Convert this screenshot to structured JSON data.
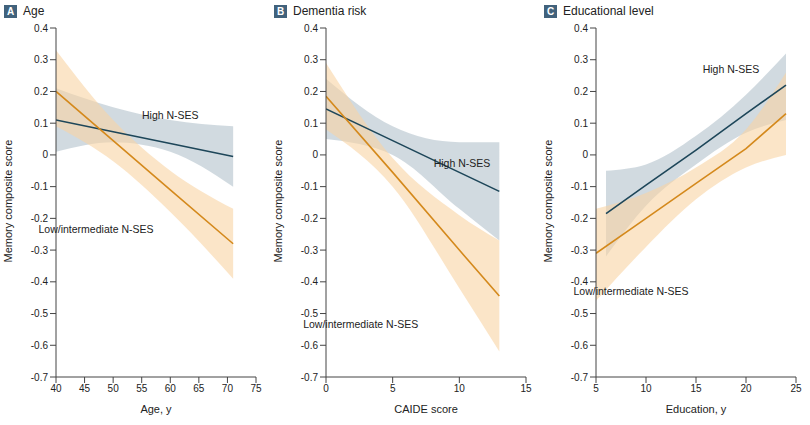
{
  "chart_data": [
    {
      "type": "line",
      "label": "A",
      "title": "Age",
      "x_label": "Age, y",
      "y_label": "Memory composite score",
      "xlim": [
        40,
        75
      ],
      "xticks": [
        40,
        45,
        50,
        55,
        60,
        65,
        70,
        75
      ],
      "ylim": [
        -0.7,
        0.4
      ],
      "yticks": [
        -0.7,
        -0.6,
        -0.5,
        -0.4,
        -0.3,
        -0.2,
        -0.1,
        0,
        0.1,
        0.2,
        0.3,
        0.4
      ],
      "grid": false,
      "series": [
        {
          "name": "High N-SES",
          "color": "#1d4659",
          "band_color": "#b3c1cb",
          "x": [
            40,
            50,
            60,
            71
          ],
          "values": [
            0.11,
            0.073,
            0.036,
            -0.005
          ],
          "lower": [
            0.01,
            0.04,
            0.01,
            -0.1
          ],
          "upper": [
            0.21,
            0.15,
            0.11,
            0.09
          ]
        },
        {
          "name": "Low/intermediate N-SES",
          "color": "#d4891c",
          "band_color": "#f9d3a3",
          "x": [
            40,
            50,
            60,
            71
          ],
          "values": [
            0.2,
            0.045,
            -0.11,
            -0.28
          ],
          "lower": [
            0.09,
            -0.02,
            -0.18,
            -0.39
          ],
          "upper": [
            0.33,
            0.11,
            -0.05,
            -0.17
          ]
        }
      ],
      "annotations": [
        {
          "text": "High N-SES",
          "x": 60,
          "y": 0.125
        },
        {
          "text": "Low/intermediate N-SES",
          "x": 47,
          "y": -0.235
        }
      ]
    },
    {
      "type": "line",
      "label": "B",
      "title": "Dementia risk",
      "x_label": "CAIDE score",
      "y_label": "Memory composite score",
      "xlim": [
        0,
        15
      ],
      "xticks": [
        0,
        5,
        10,
        15
      ],
      "ylim": [
        -0.7,
        0.4
      ],
      "yticks": [
        -0.7,
        -0.6,
        -0.5,
        -0.4,
        -0.3,
        -0.2,
        -0.1,
        0,
        0.1,
        0.2,
        0.3,
        0.4
      ],
      "grid": false,
      "series": [
        {
          "name": "High N-SES",
          "color": "#1d4659",
          "band_color": "#b3c1cb",
          "x": [
            0,
            5,
            10,
            13
          ],
          "values": [
            0.145,
            0.045,
            -0.055,
            -0.115
          ],
          "lower": [
            0.05,
            0.0,
            -0.17,
            -0.27
          ],
          "upper": [
            0.24,
            0.09,
            0.04,
            0.04
          ]
        },
        {
          "name": "Low/intermediate N-SES",
          "color": "#d4891c",
          "band_color": "#f9d3a3",
          "x": [
            0,
            5,
            10,
            13
          ],
          "values": [
            0.185,
            -0.055,
            -0.3,
            -0.445
          ],
          "lower": [
            0.08,
            -0.1,
            -0.42,
            -0.62
          ],
          "upper": [
            0.29,
            -0.01,
            -0.19,
            -0.27
          ]
        }
      ],
      "annotations": [
        {
          "text": "High N-SES",
          "x": 10.2,
          "y": -0.025
        },
        {
          "text": "Low/intermediate N-SES",
          "x": 2.6,
          "y": -0.535
        }
      ]
    },
    {
      "type": "line",
      "label": "C",
      "title": "Educational level",
      "x_label": "Education, y",
      "y_label": "Memory composite score",
      "xlim": [
        5,
        25
      ],
      "xticks": [
        5,
        10,
        15,
        20,
        25
      ],
      "ylim": [
        -0.7,
        0.4
      ],
      "yticks": [
        -0.7,
        -0.6,
        -0.5,
        -0.4,
        -0.3,
        -0.2,
        -0.1,
        0,
        0.1,
        0.2,
        0.3,
        0.4
      ],
      "grid": false,
      "series": [
        {
          "name": "High N-SES",
          "color": "#1d4659",
          "band_color": "#b3c1cb",
          "x": [
            6,
            10,
            15,
            20,
            24
          ],
          "values": [
            -0.185,
            -0.095,
            0.015,
            0.13,
            0.22
          ],
          "lower": [
            -0.32,
            -0.16,
            -0.03,
            0.07,
            0.11
          ],
          "upper": [
            -0.05,
            -0.03,
            0.06,
            0.19,
            0.32
          ]
        },
        {
          "name": "Low/intermediate N-SES",
          "color": "#d4891c",
          "band_color": "#f9d3a3",
          "x": [
            5,
            10,
            15,
            20,
            24
          ],
          "values": [
            -0.31,
            -0.2,
            -0.09,
            0.02,
            0.13
          ],
          "lower": [
            -0.46,
            -0.29,
            -0.14,
            -0.04,
            0.0
          ],
          "upper": [
            -0.17,
            -0.12,
            -0.04,
            0.08,
            0.26
          ]
        }
      ],
      "annotations": [
        {
          "text": "High N-SES",
          "x": 18.5,
          "y": 0.27
        },
        {
          "text": "Low/intermediate N-SES",
          "x": 8.5,
          "y": -0.43
        }
      ]
    }
  ]
}
